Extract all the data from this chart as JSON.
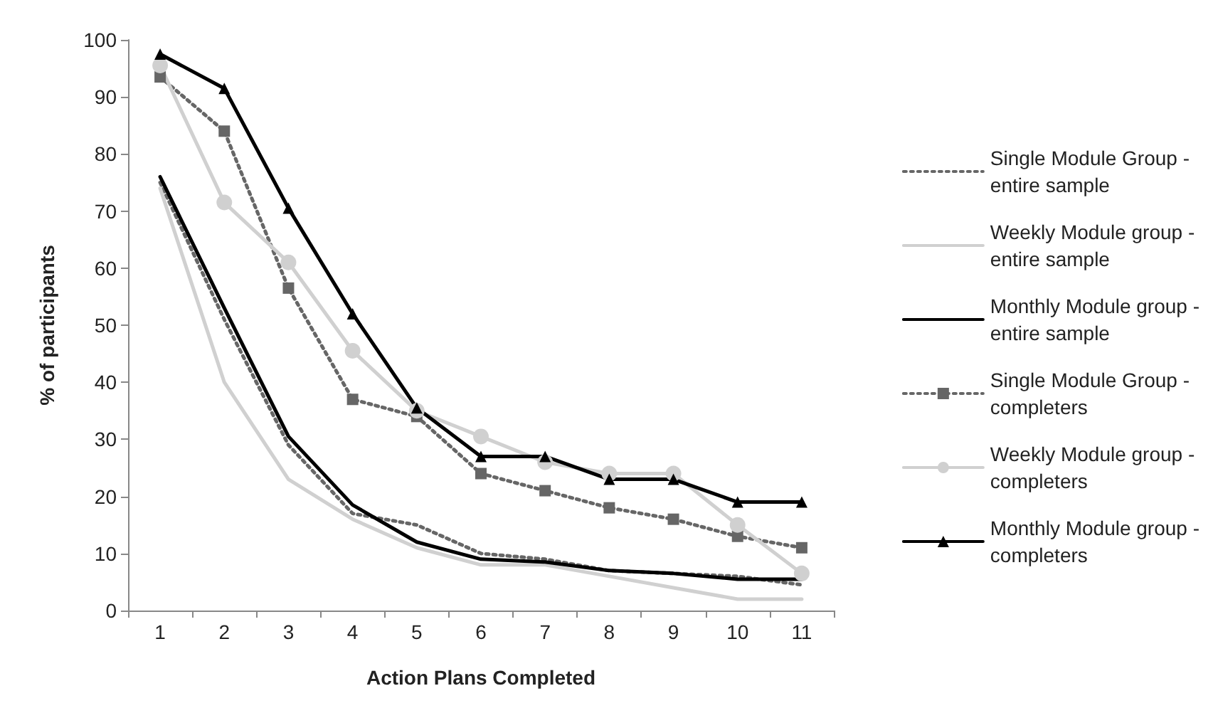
{
  "chart_data": {
    "type": "line",
    "xlabel": "Action Plans Completed",
    "ylabel": "% of participants",
    "categories": [
      "1",
      "2",
      "3",
      "4",
      "5",
      "6",
      "7",
      "8",
      "9",
      "10",
      "11"
    ],
    "ylim": [
      0,
      100
    ],
    "yticks": [
      0,
      10,
      20,
      30,
      40,
      50,
      60,
      70,
      80,
      90,
      100
    ],
    "grid": false,
    "legend": "right",
    "series": [
      {
        "name": "Single Module Group - entire sample",
        "color": "#666666",
        "line_style": "dotted",
        "marker": "none",
        "values": [
          75,
          51,
          29,
          17,
          15,
          10,
          9,
          7,
          6.5,
          6,
          4.5
        ]
      },
      {
        "name": "Weekly Module group - entire sample",
        "color": "#d0d0d0",
        "line_style": "solid",
        "marker": "none",
        "values": [
          74,
          40,
          23,
          16,
          11,
          8,
          8,
          6,
          4,
          2,
          2
        ]
      },
      {
        "name": "Monthly Module group - entire sample",
        "color": "#000000",
        "line_style": "solid",
        "marker": "none",
        "values": [
          76,
          53,
          30.5,
          18.5,
          12,
          9,
          8.5,
          7,
          6.5,
          5.5,
          5.5
        ]
      },
      {
        "name": "Single Module Group - completers",
        "color": "#666666",
        "line_style": "dotted",
        "marker": "square",
        "values": [
          93.5,
          84,
          56.5,
          37,
          34,
          24,
          21,
          18,
          16,
          13,
          11
        ]
      },
      {
        "name": "Weekly Module group - completers",
        "color": "#d0d0d0",
        "line_style": "solid",
        "marker": "circle",
        "values": [
          95.5,
          71.5,
          61,
          45.5,
          35,
          30.5,
          26,
          24,
          24,
          15,
          6.5
        ]
      },
      {
        "name": "Monthly Module group - completers",
        "color": "#000000",
        "line_style": "solid",
        "marker": "triangle",
        "values": [
          97.5,
          91.5,
          70.5,
          52,
          35.5,
          27,
          27,
          23,
          23,
          19,
          19
        ]
      }
    ]
  }
}
